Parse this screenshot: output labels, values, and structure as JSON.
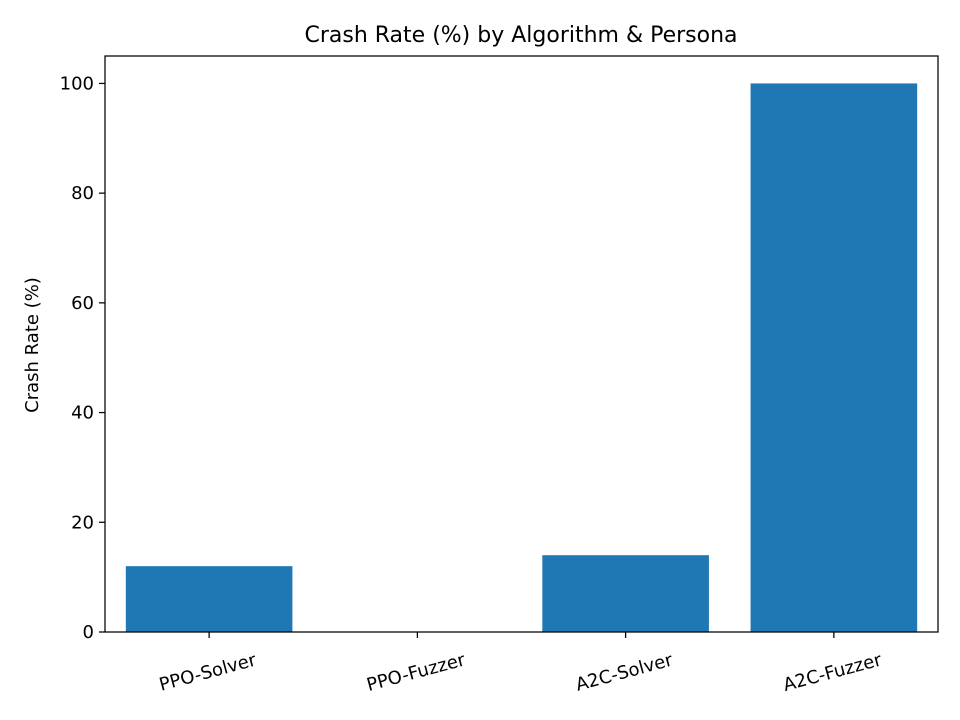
{
  "chart_data": {
    "type": "bar",
    "title": "Crash Rate (%) by Algorithm & Persona",
    "xlabel": "",
    "ylabel": "Crash Rate (%)",
    "categories": [
      "PPO-Solver",
      "PPO-Fuzzer",
      "A2C-Solver",
      "A2C-Fuzzer"
    ],
    "values": [
      12,
      0,
      14,
      100
    ],
    "ylim": [
      0,
      105
    ],
    "yticks": [
      0,
      20,
      40,
      60,
      80,
      100
    ],
    "grid": false,
    "legend": "none",
    "bar_color": "#1f77b4"
  }
}
